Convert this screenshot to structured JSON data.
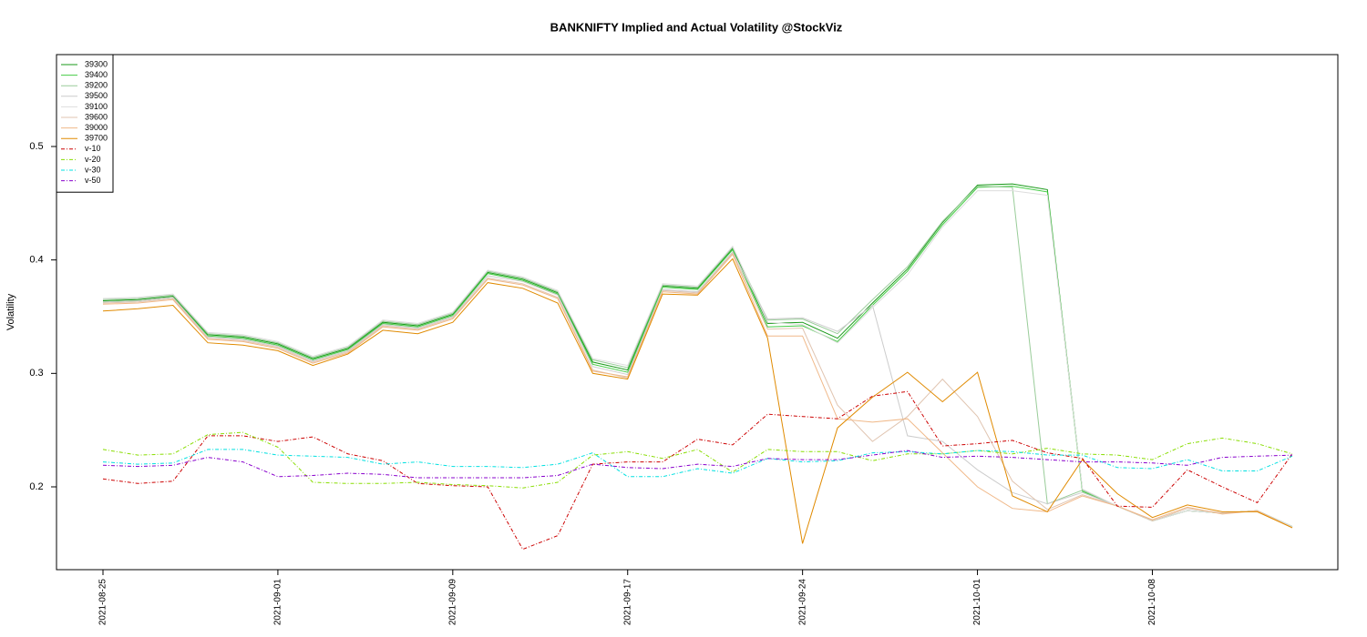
{
  "chart_data": {
    "type": "line",
    "title": "BANKNIFTY Implied and Actual Volatility @StockViz",
    "y_label": "Volatility",
    "categories": [
      "2021-08-25",
      null,
      null,
      null,
      null,
      "2021-09-01",
      null,
      null,
      null,
      null,
      "2021-09-09",
      null,
      null,
      null,
      null,
      "2021-09-17",
      null,
      null,
      null,
      null,
      "2021-09-24",
      null,
      null,
      null,
      null,
      "2021-10-01",
      null,
      null,
      null,
      null,
      "2021-10-08",
      null,
      null,
      null,
      null
    ],
    "ylim": [
      0.127,
      0.581
    ],
    "yticks": [
      0.2,
      0.3,
      0.4,
      0.5
    ],
    "legend": "top-left",
    "series": [
      {
        "name": "39300",
        "color": "#1a9a1a",
        "style": "solid",
        "values": [
          0.364,
          0.365,
          0.368,
          0.334,
          0.332,
          0.326,
          0.313,
          0.322,
          0.345,
          0.342,
          0.352,
          0.389,
          0.383,
          0.371,
          0.31,
          0.303,
          0.377,
          0.375,
          0.41,
          0.344,
          0.345,
          0.331,
          0.362,
          0.392,
          0.433,
          0.466,
          0.467,
          0.462,
          0.197,
          0.183,
          0.17,
          0.179,
          0.177,
          0.179,
          0.165
        ]
      },
      {
        "name": "39400",
        "color": "#44cc44",
        "style": "solid",
        "values": [
          0.363,
          0.364,
          0.367,
          0.333,
          0.331,
          0.325,
          0.312,
          0.321,
          0.344,
          0.341,
          0.351,
          0.388,
          0.382,
          0.37,
          0.308,
          0.301,
          0.376,
          0.374,
          0.409,
          0.341,
          0.342,
          0.328,
          0.36,
          0.39,
          0.431,
          0.464,
          0.465,
          0.46,
          0.196,
          0.183,
          0.17,
          0.179,
          0.177,
          0.179,
          0.165
        ]
      },
      {
        "name": "39200",
        "color": "#99cc99",
        "style": "solid",
        "values": [
          0.365,
          0.366,
          0.369,
          0.335,
          0.333,
          0.327,
          0.314,
          0.323,
          0.346,
          0.343,
          0.353,
          0.39,
          0.384,
          0.372,
          0.312,
          0.305,
          0.378,
          0.376,
          0.411,
          0.347,
          0.348,
          0.335,
          0.365,
          0.394,
          0.434,
          0.465,
          0.464,
          0.185,
          0.197,
          0.183,
          0.17,
          0.179,
          0.177,
          0.179,
          0.165
        ]
      },
      {
        "name": "39500",
        "color": "#cccccc",
        "style": "solid",
        "values": [
          0.363,
          0.364,
          0.367,
          0.332,
          0.33,
          0.324,
          0.311,
          0.32,
          0.343,
          0.34,
          0.35,
          0.386,
          0.381,
          0.369,
          0.306,
          0.299,
          0.374,
          0.372,
          0.407,
          0.348,
          0.349,
          0.337,
          0.36,
          0.245,
          0.24,
          0.215,
          0.195,
          0.185,
          0.195,
          0.183,
          0.17,
          0.179,
          0.177,
          0.179,
          0.165
        ]
      },
      {
        "name": "39100",
        "color": "#dddddd",
        "style": "solid",
        "values": [
          0.366,
          0.367,
          0.37,
          0.336,
          0.334,
          0.328,
          0.315,
          0.324,
          0.347,
          0.344,
          0.354,
          0.391,
          0.385,
          0.373,
          0.313,
          0.307,
          0.379,
          0.377,
          0.412,
          0.345,
          0.343,
          0.327,
          0.358,
          0.387,
          0.429,
          0.461,
          0.461,
          0.457,
          0.198,
          0.183,
          0.17,
          0.179,
          0.177,
          0.179,
          0.165
        ]
      },
      {
        "name": "39600",
        "color": "#e0c4b0",
        "style": "solid",
        "values": [
          0.362,
          0.363,
          0.366,
          0.331,
          0.329,
          0.323,
          0.31,
          0.319,
          0.342,
          0.339,
          0.349,
          0.384,
          0.379,
          0.367,
          0.303,
          0.296,
          0.373,
          0.371,
          0.406,
          0.339,
          0.34,
          0.272,
          0.24,
          0.262,
          0.295,
          0.262,
          0.205,
          0.18,
          0.193,
          0.183,
          0.17,
          0.181,
          0.177,
          0.179,
          0.164
        ]
      },
      {
        "name": "39000",
        "color": "#f0b888",
        "style": "solid",
        "values": [
          0.361,
          0.362,
          0.365,
          0.33,
          0.328,
          0.322,
          0.309,
          0.318,
          0.341,
          0.338,
          0.348,
          0.383,
          0.378,
          0.366,
          0.302,
          0.297,
          0.372,
          0.37,
          0.405,
          0.333,
          0.333,
          0.26,
          0.257,
          0.26,
          0.23,
          0.2,
          0.181,
          0.178,
          0.192,
          0.183,
          0.171,
          0.182,
          0.176,
          0.179,
          0.164
        ]
      },
      {
        "name": "39700",
        "color": "#e08a00",
        "style": "solid",
        "values": [
          0.355,
          0.357,
          0.36,
          0.327,
          0.325,
          0.32,
          0.307,
          0.317,
          0.338,
          0.335,
          0.345,
          0.38,
          0.375,
          0.362,
          0.3,
          0.295,
          0.37,
          0.369,
          0.401,
          0.331,
          0.15,
          0.252,
          0.279,
          0.301,
          0.275,
          0.301,
          0.192,
          0.178,
          0.224,
          0.194,
          0.173,
          0.184,
          0.178,
          0.178,
          0.164
        ]
      },
      {
        "name": "v-10",
        "color": "#cc0000",
        "style": "dashed",
        "values": [
          0.207,
          0.203,
          0.205,
          0.245,
          0.245,
          0.24,
          0.244,
          0.229,
          0.223,
          0.203,
          0.201,
          0.2,
          0.145,
          0.157,
          0.22,
          0.222,
          0.222,
          0.242,
          0.237,
          0.264,
          0.262,
          0.26,
          0.28,
          0.284,
          0.236,
          0.238,
          0.241,
          0.23,
          0.225,
          0.183,
          0.182,
          0.215,
          0.2,
          0.186,
          0.229
        ]
      },
      {
        "name": "v-20",
        "color": "#88dd00",
        "style": "dashed",
        "values": [
          0.233,
          0.228,
          0.229,
          0.246,
          0.248,
          0.235,
          0.204,
          0.203,
          0.203,
          0.204,
          0.202,
          0.201,
          0.199,
          0.204,
          0.228,
          0.231,
          0.225,
          0.233,
          0.213,
          0.233,
          0.231,
          0.231,
          0.223,
          0.229,
          0.229,
          0.232,
          0.229,
          0.234,
          0.229,
          0.228,
          0.224,
          0.238,
          0.243,
          0.238,
          0.229
        ]
      },
      {
        "name": "v-30",
        "color": "#00e0e0",
        "style": "dashed",
        "values": [
          0.222,
          0.22,
          0.221,
          0.233,
          0.233,
          0.228,
          0.227,
          0.226,
          0.22,
          0.222,
          0.218,
          0.218,
          0.217,
          0.22,
          0.23,
          0.209,
          0.209,
          0.216,
          0.212,
          0.225,
          0.222,
          0.223,
          0.23,
          0.231,
          0.229,
          0.232,
          0.231,
          0.228,
          0.228,
          0.217,
          0.216,
          0.224,
          0.214,
          0.214,
          0.227
        ]
      },
      {
        "name": "v-50",
        "color": "#8800cc",
        "style": "dashed",
        "values": [
          0.219,
          0.218,
          0.219,
          0.226,
          0.222,
          0.209,
          0.21,
          0.212,
          0.211,
          0.208,
          0.208,
          0.208,
          0.208,
          0.21,
          0.22,
          0.217,
          0.216,
          0.22,
          0.218,
          0.225,
          0.224,
          0.224,
          0.228,
          0.232,
          0.226,
          0.227,
          0.226,
          0.224,
          0.222,
          0.222,
          0.221,
          0.219,
          0.226,
          0.227,
          0.228
        ]
      }
    ]
  }
}
